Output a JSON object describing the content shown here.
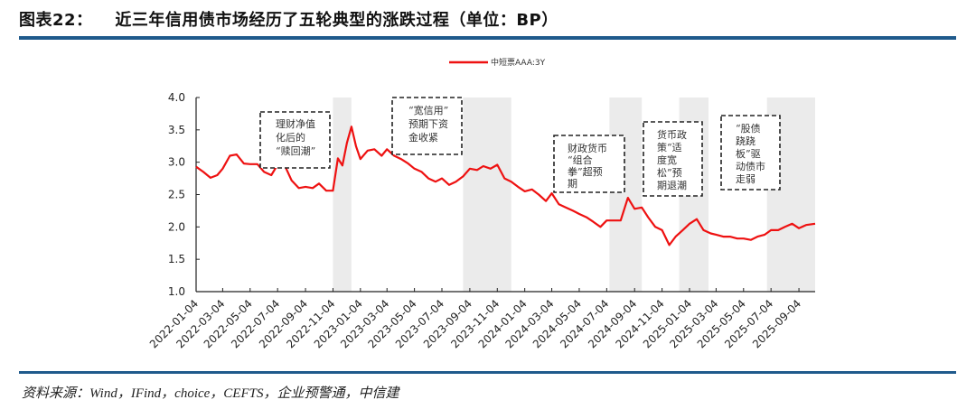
{
  "header": {
    "figure_label": "图表22：",
    "title": "近三年信用债市场经历了五轮典型的涨跌过程（单位：BP）"
  },
  "footer": {
    "source": "资料来源：Wind，IFind，choice，CEFTS，企业预警通，中信建"
  },
  "colors": {
    "series": "#ee1111",
    "shade": "#ebebeb",
    "rule": "#1f5a8c",
    "annotation_border": "#222222"
  },
  "chart_data": {
    "type": "line",
    "title": "近三年信用债市场经历了五轮典型的涨跌过程（单位：BP）",
    "xlabel": "",
    "ylabel": "",
    "ylim": [
      1.0,
      4.0
    ],
    "yticks": [
      "1.0",
      "1.5",
      "2.0",
      "2.5",
      "3.0",
      "3.5",
      "4.0"
    ],
    "legend": {
      "position": "top-center",
      "entries": [
        "中短票AAA:3Y"
      ]
    },
    "grid": false,
    "x_tick_labels": [
      "2022-01-04",
      "2022-03-04",
      "2022-05-04",
      "2022-07-04",
      "2022-09-04",
      "2022-11-04",
      "2023-01-04",
      "2023-03-04",
      "2023-05-04",
      "2023-07-04",
      "2023-09-04",
      "2023-11-04",
      "2024-01-04",
      "2024-03-04",
      "2024-05-04",
      "2024-07-04",
      "2024-09-04",
      "2024-11-04",
      "2025-01-04",
      "2025-03-04",
      "2025-05-04",
      "2025-07-04",
      "2025-09-04"
    ],
    "shaded_periods": [
      {
        "start": "2022-11-04",
        "end": "2022-12-15"
      },
      {
        "start": "2023-08-20",
        "end": "2023-12-05"
      },
      {
        "start": "2024-07-10",
        "end": "2024-09-20"
      },
      {
        "start": "2024-12-12",
        "end": "2025-02-15"
      },
      {
        "start": "2025-06-25",
        "end": "2025-10-15"
      }
    ],
    "annotations": [
      {
        "lines": [
          "理财净值",
          "化后的",
          "“赎回潮”"
        ]
      },
      {
        "lines": [
          "“宽信用”",
          "预期下资",
          "金收紧"
        ]
      },
      {
        "lines": [
          "财政货币",
          "“组合",
          "拳”超预",
          "期"
        ]
      },
      {
        "lines": [
          "货币政",
          "策“适",
          "度宽",
          "松”预",
          "期退潮"
        ]
      },
      {
        "lines": [
          "“股债",
          "跷跷",
          "板”驱",
          "动债市",
          "走弱"
        ]
      }
    ],
    "series": [
      {
        "name": "中短票AAA:3Y",
        "x": [
          "2022-01-04",
          "2022-01-20",
          "2022-02-05",
          "2022-02-20",
          "2022-03-04",
          "2022-03-20",
          "2022-04-04",
          "2022-04-20",
          "2022-05-04",
          "2022-05-20",
          "2022-06-04",
          "2022-06-20",
          "2022-07-04",
          "2022-07-20",
          "2022-08-04",
          "2022-08-20",
          "2022-09-04",
          "2022-09-20",
          "2022-10-04",
          "2022-10-20",
          "2022-11-04",
          "2022-11-15",
          "2022-11-25",
          "2022-12-05",
          "2022-12-15",
          "2022-12-25",
          "2023-01-04",
          "2023-01-20",
          "2023-02-04",
          "2023-02-20",
          "2023-03-04",
          "2023-03-20",
          "2023-04-04",
          "2023-04-20",
          "2023-05-04",
          "2023-05-20",
          "2023-06-04",
          "2023-06-20",
          "2023-07-04",
          "2023-07-20",
          "2023-08-04",
          "2023-08-20",
          "2023-09-04",
          "2023-09-20",
          "2023-10-04",
          "2023-10-20",
          "2023-11-04",
          "2023-11-20",
          "2023-12-05",
          "2023-12-20",
          "2024-01-04",
          "2024-01-20",
          "2024-02-04",
          "2024-02-20",
          "2024-03-04",
          "2024-03-20",
          "2024-04-04",
          "2024-04-20",
          "2024-05-04",
          "2024-05-20",
          "2024-06-04",
          "2024-06-20",
          "2024-07-04",
          "2024-07-20",
          "2024-08-04",
          "2024-08-20",
          "2024-09-04",
          "2024-09-20",
          "2024-10-04",
          "2024-10-20",
          "2024-11-04",
          "2024-11-20",
          "2024-12-04",
          "2024-12-20",
          "2025-01-04",
          "2025-01-20",
          "2025-02-04",
          "2025-02-20",
          "2025-03-04",
          "2025-03-20",
          "2025-04-04",
          "2025-04-20",
          "2025-05-04",
          "2025-05-20",
          "2025-06-04",
          "2025-06-20",
          "2025-07-04",
          "2025-07-20",
          "2025-08-04",
          "2025-08-20",
          "2025-09-04",
          "2025-09-20",
          "2025-10-10"
        ],
        "values": [
          2.93,
          2.85,
          2.76,
          2.8,
          2.9,
          3.1,
          3.12,
          2.98,
          2.97,
          2.97,
          2.85,
          2.8,
          2.96,
          2.95,
          2.72,
          2.6,
          2.62,
          2.6,
          2.67,
          2.56,
          2.56,
          3.06,
          2.95,
          3.3,
          3.55,
          3.25,
          3.05,
          3.18,
          3.2,
          3.1,
          3.2,
          3.1,
          3.05,
          2.98,
          2.9,
          2.85,
          2.75,
          2.7,
          2.75,
          2.65,
          2.7,
          2.78,
          2.9,
          2.88,
          2.94,
          2.9,
          2.96,
          2.75,
          2.7,
          2.62,
          2.55,
          2.58,
          2.5,
          2.4,
          2.52,
          2.35,
          2.3,
          2.25,
          2.2,
          2.15,
          2.08,
          2.0,
          2.1,
          2.1,
          2.1,
          2.45,
          2.28,
          2.3,
          2.15,
          2.0,
          1.95,
          1.72,
          1.85,
          1.95,
          2.05,
          2.12,
          1.95,
          1.9,
          1.88,
          1.85,
          1.85,
          1.82,
          1.82,
          1.8,
          1.85,
          1.88,
          1.95,
          1.95,
          2.0,
          2.05,
          1.98,
          2.03,
          2.05
        ]
      }
    ]
  }
}
